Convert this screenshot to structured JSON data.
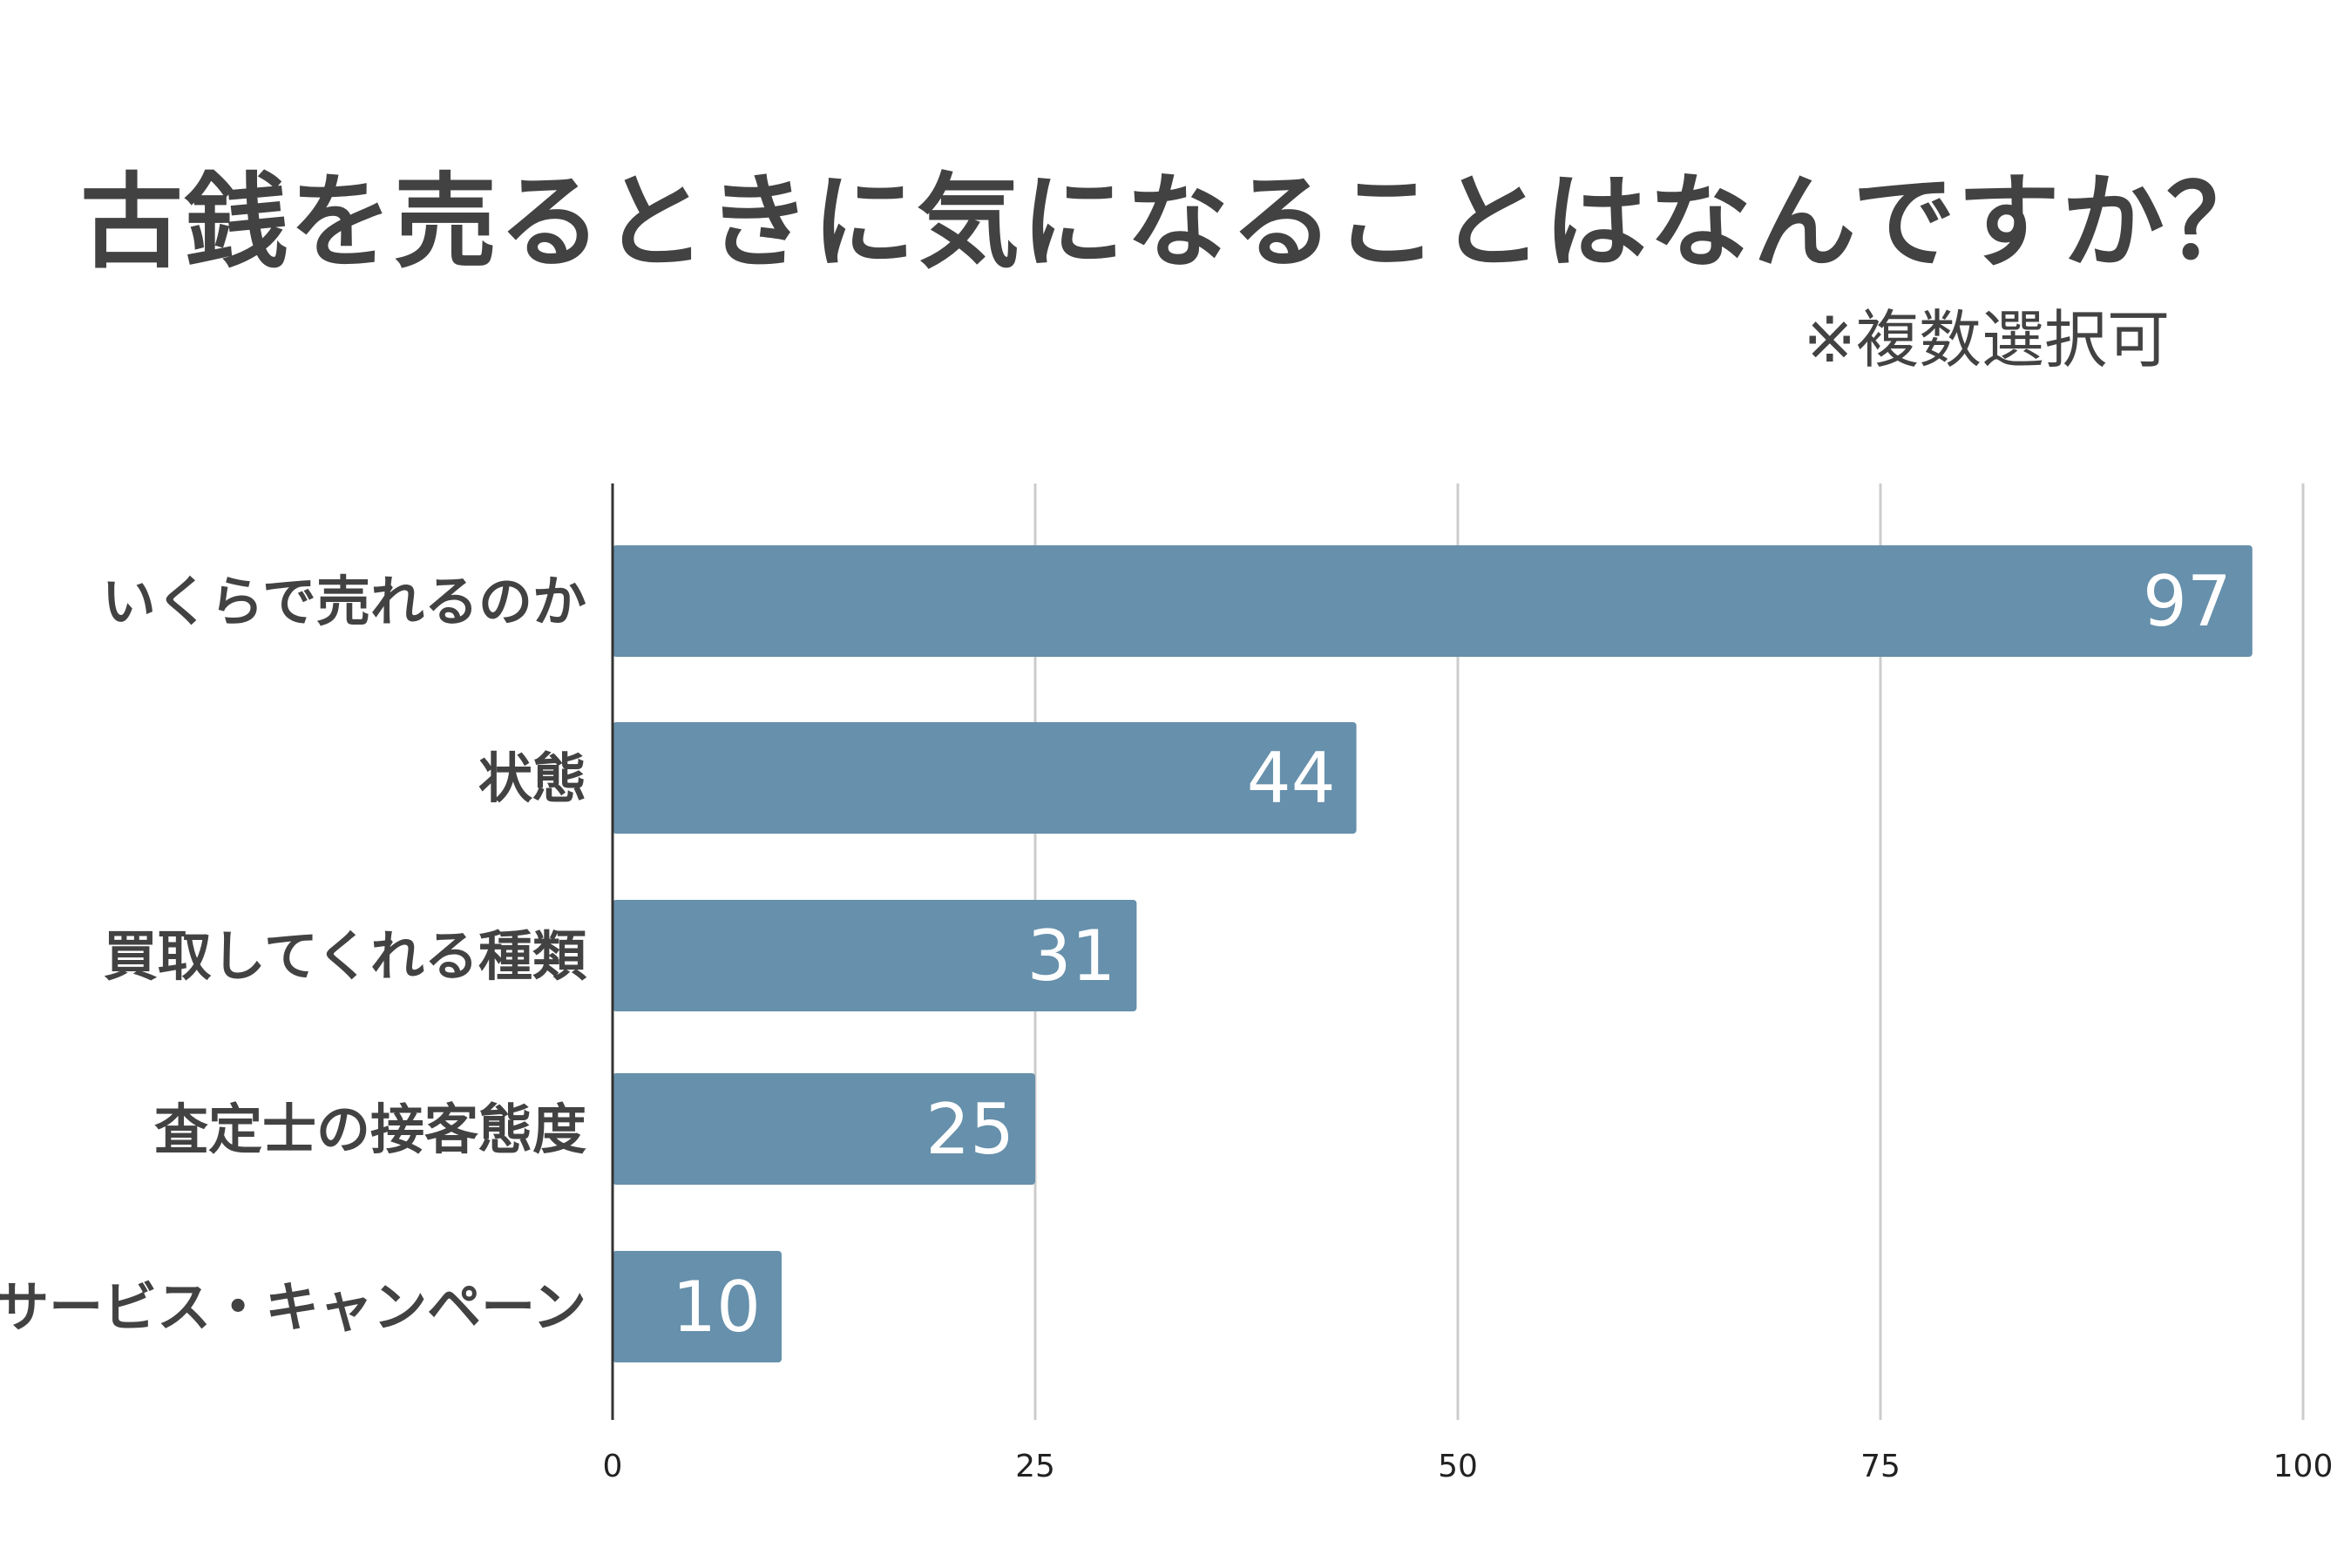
{
  "chart_data": {
    "type": "bar",
    "orientation": "horizontal",
    "title": "古銭を売るときに気になることはなんですか？",
    "subtitle": "※複数選択可",
    "categories": [
      "いくらで売れるのか",
      "状態",
      "買取してくれる種類",
      "査定士の接客態度",
      "サービス・キャンペーン"
    ],
    "values": [
      97,
      44,
      31,
      25,
      10
    ],
    "xlim": [
      0,
      100
    ],
    "xticks": [
      0,
      25,
      50,
      75,
      100
    ],
    "xlabel": "",
    "ylabel": "",
    "grid": true,
    "data_labels": true
  },
  "colors": {
    "bar": "#6690ab",
    "title": "#424242",
    "gridline": "#cccccc",
    "axis": "#333333",
    "bar_label": "#ffffff"
  }
}
